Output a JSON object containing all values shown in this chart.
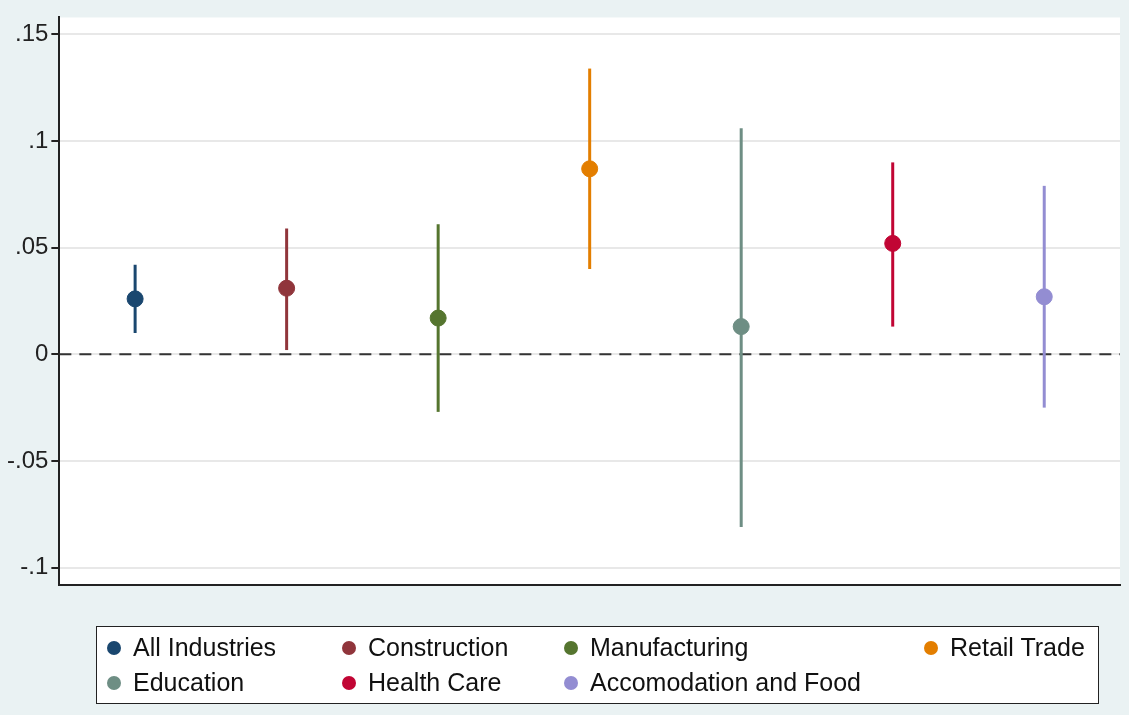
{
  "chart_data": {
    "type": "scatter",
    "categories": [
      null,
      null,
      null,
      null,
      null,
      null,
      null
    ],
    "series": [
      {
        "name": "All Industries",
        "color": "#1a476f",
        "values": [
          0.026,
          null,
          null,
          null,
          null,
          null,
          null
        ],
        "errors": [
          [
            0.01,
            0.042
          ],
          null,
          null,
          null,
          null,
          null,
          null
        ]
      },
      {
        "name": "Construction",
        "color": "#90353b",
        "values": [
          null,
          0.031,
          null,
          null,
          null,
          null,
          null
        ],
        "errors": [
          null,
          [
            0.002,
            0.059
          ],
          null,
          null,
          null,
          null,
          null
        ]
      },
      {
        "name": "Manufacturing",
        "color": "#55752f",
        "values": [
          null,
          null,
          0.017,
          null,
          null,
          null,
          null
        ],
        "errors": [
          null,
          null,
          [
            -0.027,
            0.061
          ],
          null,
          null,
          null,
          null
        ]
      },
      {
        "name": "Retail Trade",
        "color": "#e37e00",
        "values": [
          null,
          null,
          null,
          0.087,
          null,
          null,
          null
        ],
        "errors": [
          null,
          null,
          null,
          [
            0.04,
            0.134
          ],
          null,
          null,
          null
        ]
      },
      {
        "name": "Education",
        "color": "#6e8e84",
        "values": [
          null,
          null,
          null,
          null,
          0.013,
          null,
          null
        ],
        "errors": [
          null,
          null,
          null,
          null,
          [
            -0.081,
            0.106
          ],
          null,
          null
        ]
      },
      {
        "name": "Health Care",
        "color": "#c10534",
        "values": [
          null,
          null,
          null,
          null,
          null,
          0.052,
          null
        ],
        "errors": [
          null,
          null,
          null,
          null,
          null,
          [
            0.013,
            0.09
          ],
          null
        ]
      },
      {
        "name": "Accomodation and Food",
        "color": "#938dd2",
        "values": [
          null,
          null,
          null,
          null,
          null,
          null,
          0.027
        ],
        "errors": [
          null,
          null,
          null,
          null,
          null,
          null,
          [
            -0.025,
            0.079
          ]
        ]
      }
    ],
    "ylim": [
      -0.108,
      0.158
    ],
    "yticks": [
      {
        "value": -0.1,
        "label": "-.1"
      },
      {
        "value": -0.05,
        "label": "-.05"
      },
      {
        "value": 0,
        "label": "0"
      },
      {
        "value": 0.05,
        "label": ".05"
      },
      {
        "value": 0.1,
        "label": ".1"
      },
      {
        "value": 0.15,
        "label": ".15"
      }
    ],
    "ref_lines": [
      {
        "axis": "y",
        "value": 0,
        "line_style": "dashed",
        "color": "#333333"
      }
    ],
    "grid": "y",
    "legend": "bottom",
    "marker": "circle"
  }
}
